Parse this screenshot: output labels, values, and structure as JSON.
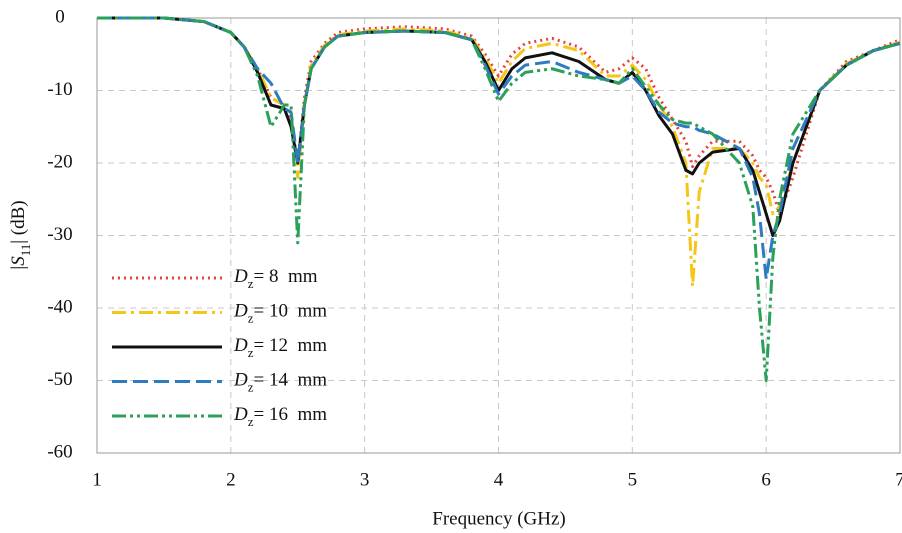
{
  "chart_data": {
    "type": "line",
    "x_label": "Frequency (GHz)",
    "y_label": "|S11| (dB)",
    "x": [
      1,
      1.5,
      1.8,
      2,
      2.1,
      2.2,
      2.3,
      2.4,
      2.45,
      2.5,
      2.55,
      2.6,
      2.7,
      2.8,
      3,
      3.3,
      3.6,
      3.8,
      3.9,
      4,
      4.1,
      4.2,
      4.4,
      4.6,
      4.8,
      4.9,
      5,
      5.1,
      5.2,
      5.3,
      5.4,
      5.45,
      5.5,
      5.6,
      5.8,
      5.9,
      5.95,
      6,
      6.05,
      6.1,
      6.2,
      6.4,
      6.6,
      6.8,
      7
    ],
    "series": [
      {
        "name": "Dz= 8  mm",
        "color": "#e8403a",
        "dash": "2 4",
        "values": [
          0,
          0,
          -0.5,
          -2,
          -4,
          -7,
          -11,
          -12,
          -14,
          -20,
          -11,
          -6,
          -3.5,
          -2,
          -1.5,
          -1.2,
          -1.5,
          -2.5,
          -5,
          -8,
          -5,
          -3.5,
          -2.8,
          -4,
          -7.5,
          -7,
          -5.5,
          -7,
          -11,
          -14,
          -17,
          -20.5,
          -19,
          -17,
          -17,
          -19,
          -21,
          -22,
          -24,
          -27,
          -22,
          -10,
          -6,
          -4.5,
          -3
        ]
      },
      {
        "name": "Dz= 10  mm",
        "color": "#f5c518",
        "dash": "14 5 3 5",
        "values": [
          0,
          0,
          -0.5,
          -2,
          -4,
          -7,
          -11,
          -12,
          -13,
          -22,
          -12,
          -6.5,
          -3.8,
          -2.3,
          -1.8,
          -1.5,
          -1.8,
          -2.8,
          -5.5,
          -9,
          -6,
          -4.2,
          -3.5,
          -4.5,
          -8,
          -8,
          -6.5,
          -8.5,
          -12,
          -15,
          -20,
          -37,
          -24,
          -18,
          -18,
          -20,
          -22,
          -23,
          -27,
          -26,
          -20,
          -10,
          -6.3,
          -4.5,
          -3.3
        ]
      },
      {
        "name": "Dz= 12  mm",
        "color": "#111111",
        "dash": "none",
        "values": [
          0,
          0,
          -0.5,
          -2,
          -4,
          -7.5,
          -12,
          -12.5,
          -15,
          -20,
          -12,
          -7,
          -4,
          -2.5,
          -2,
          -1.8,
          -2,
          -3,
          -6,
          -10,
          -7,
          -5.5,
          -4.8,
          -6,
          -8.5,
          -9,
          -7.5,
          -10,
          -13.5,
          -16,
          -21,
          -21.5,
          -20,
          -18.5,
          -18,
          -21,
          -24,
          -27,
          -30,
          -28,
          -20,
          -10,
          -6.5,
          -4.5,
          -3.5
        ]
      },
      {
        "name": "Dz= 14  mm",
        "color": "#2e7bbf",
        "dash": "15 6",
        "values": [
          0,
          0,
          -0.5,
          -2,
          -4,
          -7,
          -9,
          -12.5,
          -13,
          -20,
          -12,
          -7,
          -4,
          -2.5,
          -2,
          -1.8,
          -2,
          -3,
          -6.5,
          -10.5,
          -8,
          -6.5,
          -6,
          -7.5,
          -8.5,
          -9,
          -8,
          -10,
          -13,
          -14.5,
          -15,
          -15,
          -15.5,
          -16,
          -18,
          -22,
          -27,
          -36,
          -30,
          -27,
          -18,
          -10,
          -6.5,
          -4.5,
          -3.5
        ]
      },
      {
        "name": "Dz= 16  mm",
        "color": "#2aa05a",
        "dash": "14 4 3 4 3 4",
        "values": [
          0,
          0,
          -0.5,
          -2,
          -4,
          -8,
          -15,
          -12,
          -12,
          -31,
          -12,
          -7,
          -4,
          -2.5,
          -2,
          -1.8,
          -2,
          -3,
          -7,
          -11.5,
          -9,
          -7.5,
          -7,
          -8,
          -8.5,
          -9,
          -7,
          -9.5,
          -12,
          -14,
          -14.5,
          -14.5,
          -15,
          -16,
          -20,
          -26,
          -40,
          -50,
          -33,
          -25,
          -16,
          -10,
          -6.5,
          -4.5,
          -3.5
        ]
      }
    ],
    "xlim": [
      1,
      7
    ],
    "xticks": [
      1,
      2,
      3,
      4,
      5,
      6,
      7
    ],
    "ylim": [
      -60,
      0
    ],
    "yticks": [
      0,
      -10,
      -20,
      -30,
      -40,
      -50,
      -60
    ],
    "grid": true,
    "legend": "lower-left"
  }
}
